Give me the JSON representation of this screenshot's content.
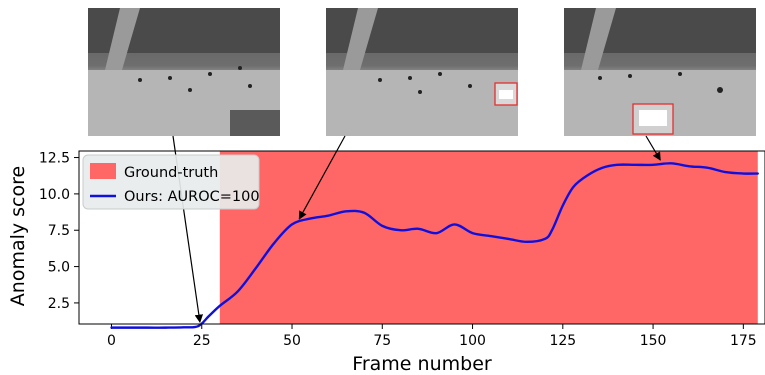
{
  "chart_data": {
    "type": "line",
    "xlabel": "Frame number",
    "ylabel": "Anomaly score",
    "xlim": [
      -9,
      181
    ],
    "ylim": [
      1.05,
      12.95
    ],
    "x_ticks": [
      0,
      25,
      50,
      75,
      100,
      125,
      150,
      175
    ],
    "y_ticks": [
      2.5,
      5.0,
      7.5,
      10.0,
      12.5
    ],
    "ground_truth": {
      "name": "Ground-truth",
      "x_start": 30,
      "x_end": 179,
      "color": "#ff6666"
    },
    "series": [
      {
        "name": "Ours: AUROC=100",
        "color": "#1010dd",
        "x": [
          0,
          5,
          10,
          15,
          20,
          24,
          27,
          30,
          35,
          40,
          45,
          50,
          55,
          60,
          65,
          70,
          75,
          80,
          85,
          90,
          95,
          100,
          105,
          110,
          115,
          120,
          122,
          125,
          128,
          132,
          136,
          140,
          145,
          150,
          155,
          160,
          165,
          170,
          175,
          179
        ],
        "y": [
          0.8,
          0.8,
          0.8,
          0.8,
          0.82,
          0.9,
          1.6,
          2.3,
          3.3,
          4.9,
          6.6,
          7.9,
          8.3,
          8.5,
          8.8,
          8.7,
          7.8,
          7.5,
          7.6,
          7.3,
          7.9,
          7.3,
          7.1,
          6.9,
          6.7,
          6.9,
          7.5,
          9.2,
          10.5,
          11.3,
          11.8,
          12.0,
          12.0,
          12.0,
          12.1,
          11.9,
          11.8,
          11.5,
          11.4,
          11.4
        ]
      }
    ],
    "legend": {
      "position": "top-left"
    },
    "grid": false,
    "annotations": [
      {
        "image": "thumb-1",
        "points_to_x": 24.5,
        "points_to_y": 0.9
      },
      {
        "image": "thumb-2",
        "points_to_x": 52,
        "points_to_y": 8.0
      },
      {
        "image": "thumb-3",
        "points_to_x": 152,
        "points_to_y": 12.05
      }
    ]
  }
}
